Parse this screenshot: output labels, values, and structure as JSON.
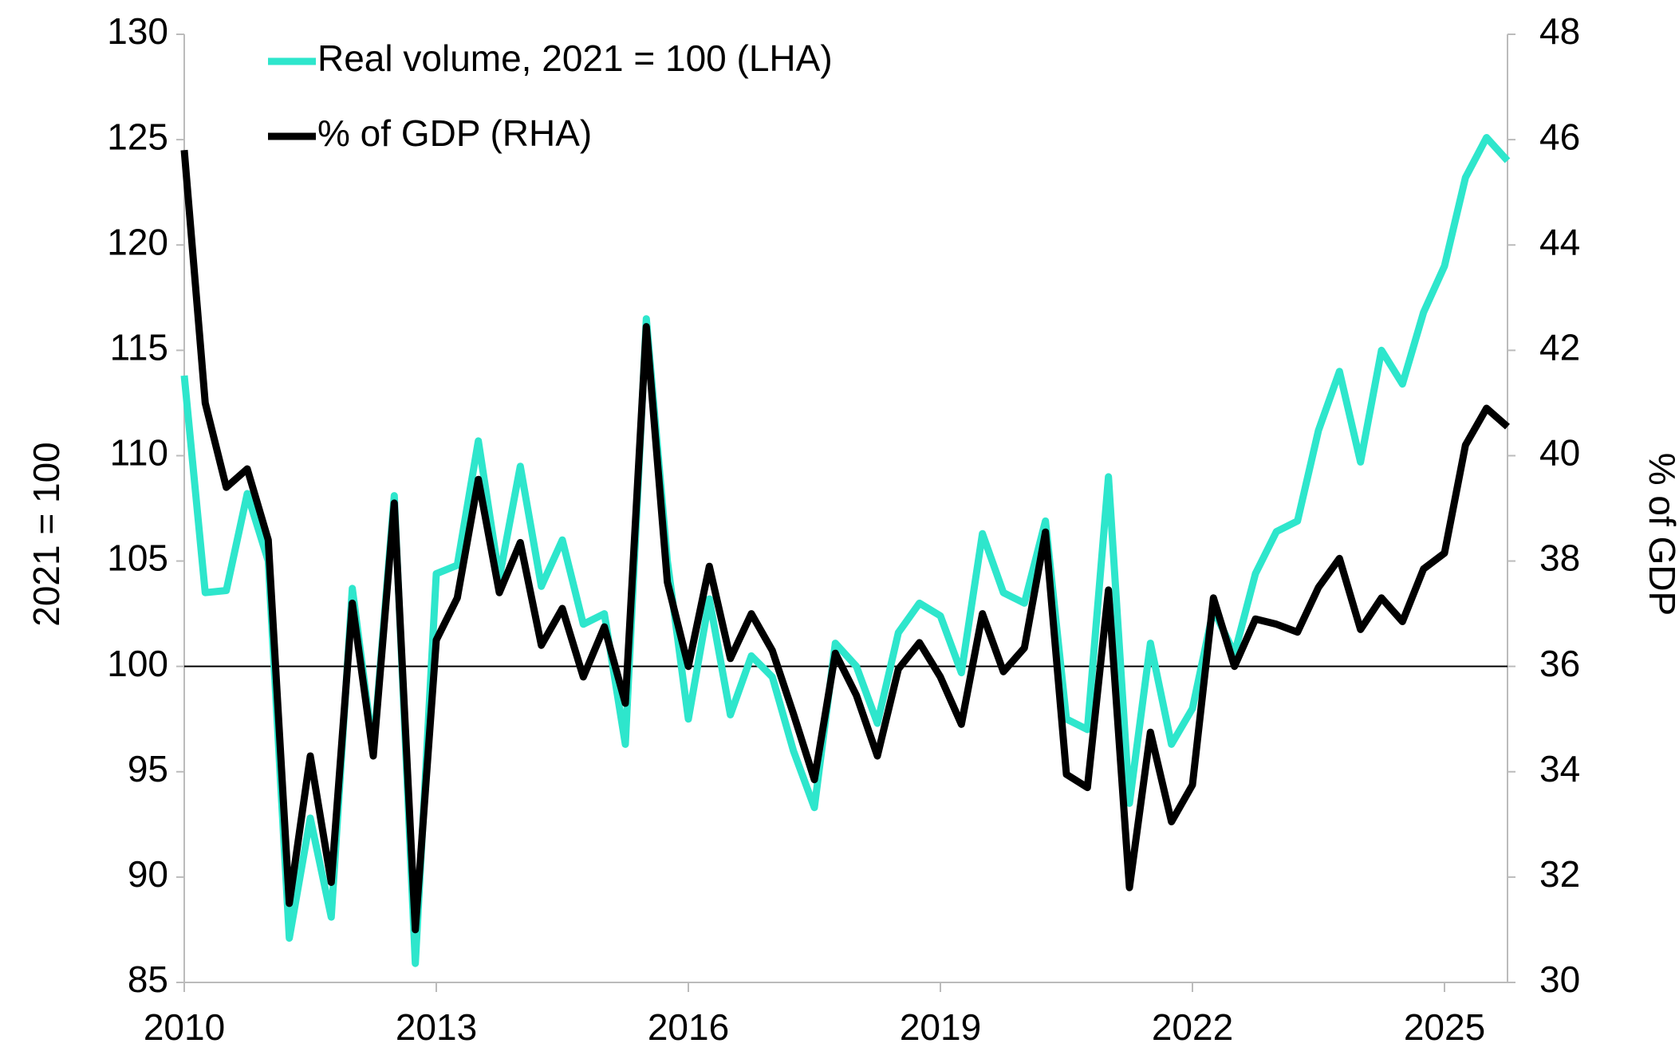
{
  "chart_data": {
    "type": "line",
    "legend": [
      {
        "label": "Real volume, 2021 = 100 (LHA)"
      },
      {
        "label": "% of GDP (RHA)"
      }
    ],
    "y_label": "2021 = 100",
    "y2_label": "% of GDP",
    "x": [
      2010,
      2010.25,
      2010.5,
      2010.75,
      2011,
      2011.25,
      2011.5,
      2011.75,
      2012,
      2012.25,
      2012.5,
      2012.75,
      2013,
      2013.25,
      2013.5,
      2013.75,
      2014,
      2014.25,
      2014.5,
      2014.75,
      2015,
      2015.25,
      2015.5,
      2015.75,
      2016,
      2016.25,
      2016.5,
      2016.75,
      2017,
      2017.25,
      2017.5,
      2017.75,
      2018,
      2018.25,
      2018.5,
      2018.75,
      2019,
      2019.25,
      2019.5,
      2019.75,
      2020,
      2020.25,
      2020.5,
      2020.75,
      2021,
      2021.25,
      2021.5,
      2021.75,
      2022,
      2022.25,
      2022.5,
      2022.75,
      2023,
      2023.25,
      2023.5,
      2023.75,
      2024,
      2024.25,
      2024.5,
      2024.75,
      2025,
      2025.25,
      2025.5,
      2025.75
    ],
    "series": [
      {
        "name": "Real volume, 2021 = 100 (LHA)",
        "color": "#2ee6cc",
        "axis": "y",
        "values": [
          113.8,
          103.5,
          103.6,
          108.2,
          105.0,
          87.1,
          92.8,
          88.1,
          103.7,
          96.0,
          108.1,
          85.9,
          104.4,
          104.8,
          110.7,
          104.2,
          109.5,
          103.8,
          106.0,
          102.0,
          102.5,
          96.3,
          116.5,
          105.0,
          97.5,
          103.2,
          97.7,
          100.5,
          99.5,
          96.0,
          93.3,
          101.1,
          100.0,
          97.3,
          101.6,
          103.0,
          102.4,
          99.7,
          106.3,
          103.5,
          103.0,
          106.9,
          97.5,
          97.0,
          109.0,
          93.5,
          101.1,
          96.3,
          98.0,
          102.7,
          100.6,
          104.4,
          106.4,
          106.9,
          111.2,
          114.0,
          109.7,
          115.0,
          113.4,
          116.8,
          119.0,
          123.2,
          125.1,
          124.0
        ]
      },
      {
        "name": "% of GDP (RHA)",
        "color": "#000000",
        "axis": "y2",
        "values": [
          45.8,
          41.0,
          39.4,
          39.75,
          38.4,
          31.5,
          34.3,
          31.9,
          37.2,
          34.3,
          39.1,
          31.0,
          36.5,
          37.3,
          39.55,
          37.4,
          38.35,
          36.4,
          37.1,
          35.8,
          36.75,
          35.3,
          42.45,
          37.6,
          36.0,
          37.9,
          36.15,
          37.0,
          36.3,
          35.1,
          33.85,
          36.25,
          35.45,
          34.3,
          35.95,
          36.45,
          35.8,
          34.9,
          37.0,
          35.9,
          36.35,
          38.55,
          33.95,
          33.7,
          37.45,
          31.8,
          34.75,
          33.05,
          33.75,
          37.3,
          36.0,
          36.9,
          36.8,
          36.65,
          37.5,
          38.05,
          36.7,
          37.3,
          36.85,
          37.85,
          38.15,
          40.2,
          40.9,
          40.55
        ]
      }
    ],
    "xlim": [
      2010,
      2025.75
    ],
    "xticks": [
      2010,
      2013,
      2016,
      2019,
      2022,
      2025
    ],
    "ylim": [
      85,
      130
    ],
    "yticks": [
      85,
      90,
      95,
      100,
      105,
      110,
      115,
      120,
      125,
      130
    ],
    "y2lim": [
      30,
      48
    ],
    "y2ticks": [
      30,
      32,
      34,
      36,
      38,
      40,
      42,
      44,
      46,
      48
    ],
    "reference_line": 100,
    "grid": false,
    "legend_position": "upper left"
  }
}
